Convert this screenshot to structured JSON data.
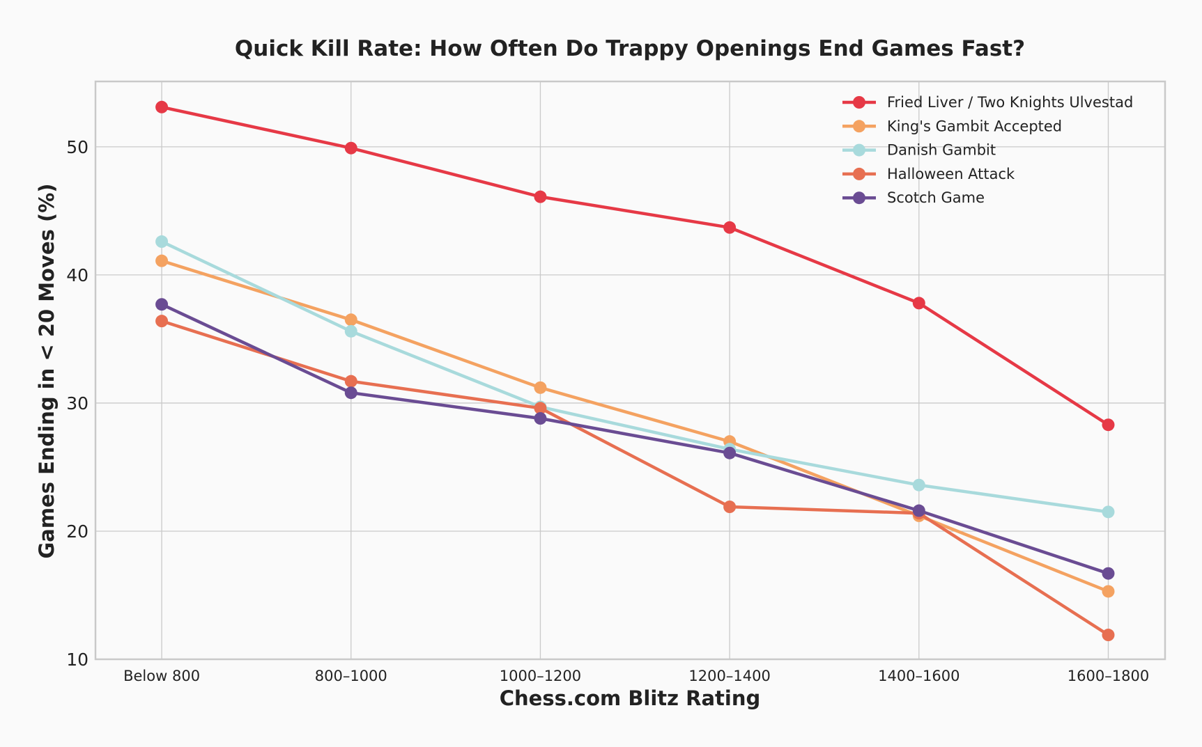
{
  "chart_data": {
    "type": "line",
    "title": "Quick Kill Rate: How Often Do Trappy Openings End Games Fast?",
    "xlabel": "Chess.com Blitz Rating",
    "ylabel": "Games Ending in < 20 Moves (%)",
    "categories": [
      "Below 800",
      "800–1000",
      "1000–1200",
      "1200–1400",
      "1400–1600",
      "1600–1800"
    ],
    "x_positions": [
      700,
      900,
      1100,
      1300,
      1500,
      1700
    ],
    "ylim": [
      10,
      55
    ],
    "yticks": [
      10,
      20,
      30,
      40,
      50
    ],
    "grid": true,
    "legend_position": "top-right",
    "series": [
      {
        "name": "Fried Liver / Two Knights Ulvestad",
        "color": "#e63946",
        "values": [
          53.1,
          49.9,
          46.1,
          43.7,
          37.8,
          28.3
        ]
      },
      {
        "name": "King's Gambit Accepted",
        "color": "#f4a261",
        "values": [
          41.1,
          36.5,
          31.2,
          27.0,
          21.2,
          15.3
        ]
      },
      {
        "name": "Danish Gambit",
        "color": "#a8dadc",
        "values": [
          42.6,
          35.6,
          29.7,
          26.4,
          23.6,
          21.5
        ]
      },
      {
        "name": "Halloween Attack",
        "color": "#e76f51",
        "values": [
          36.4,
          31.7,
          29.6,
          21.9,
          21.4,
          11.9
        ]
      },
      {
        "name": "Scotch Game",
        "color": "#6a4c93",
        "values": [
          37.7,
          30.8,
          28.8,
          26.1,
          21.6,
          16.7
        ]
      }
    ]
  }
}
